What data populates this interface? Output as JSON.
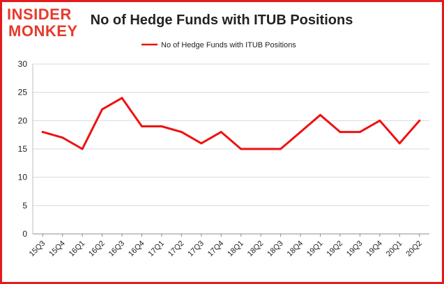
{
  "brand": {
    "line1": "INSIDER",
    "line2": "MONKEY",
    "color": "#e63a2e"
  },
  "colors": {
    "line": "#ee1111",
    "frame": "#e31a1c",
    "grid": "#d9d9d9",
    "axis": "#333333"
  },
  "chart_data": {
    "type": "line",
    "title": "No of Hedge Funds with ITUB Positions",
    "xlabel": "",
    "ylabel": "",
    "legend": "top-center",
    "grid": true,
    "ylim": [
      0,
      30
    ],
    "yticks": [
      0,
      5,
      10,
      15,
      20,
      25,
      30
    ],
    "categories": [
      "15Q3",
      "15Q4",
      "16Q1",
      "16Q2",
      "16Q3",
      "16Q4",
      "17Q1",
      "17Q2",
      "17Q3",
      "17Q4",
      "18Q1",
      "18Q2",
      "18Q3",
      "18Q4",
      "19Q1",
      "19Q2",
      "19Q3",
      "19Q4",
      "20Q1",
      "20Q2"
    ],
    "series": [
      {
        "name": "No of Hedge Funds with ITUB  Positions",
        "values": [
          18,
          17,
          15,
          22,
          24,
          19,
          19,
          18,
          16,
          18,
          15,
          15,
          15,
          18,
          21,
          18,
          18,
          20,
          16,
          20
        ]
      }
    ]
  }
}
